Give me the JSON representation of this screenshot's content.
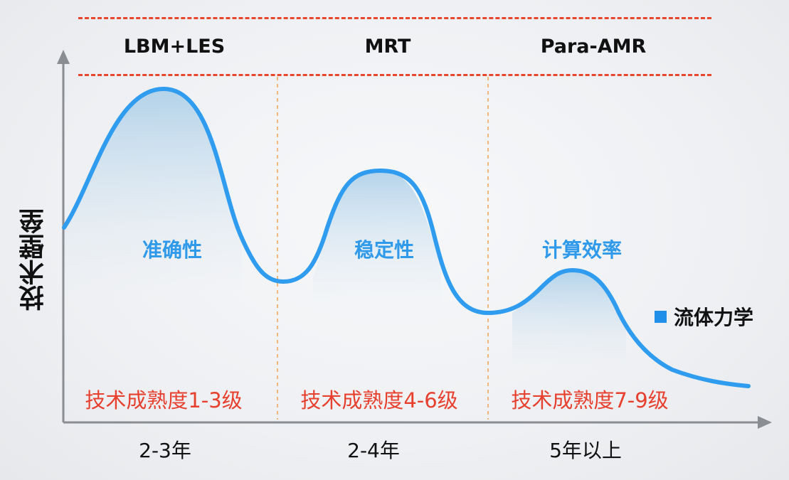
{
  "phases": [
    {
      "method": "LBM+LES",
      "barrier": "准确性",
      "trl": "技术成熟度1-3级",
      "duration": "2-3年"
    },
    {
      "method": "MRT",
      "barrier": "稳定性",
      "trl": "技术成熟度4-6级",
      "duration": "2-4年"
    },
    {
      "method": "Para-AMR",
      "barrier": "计算效率",
      "trl": "技术成熟度7-9级",
      "duration": "5年以上"
    }
  ],
  "y_axis_label": "技术壁垒",
  "legend": {
    "label": "流体力学",
    "color": "#1f8fe8"
  },
  "colors": {
    "curve": "#2f9cf0",
    "dash": "#e8462e",
    "trl_text": "#e8402e",
    "barrier_text": "#2f99ea",
    "axis": "#8a8d91"
  }
}
